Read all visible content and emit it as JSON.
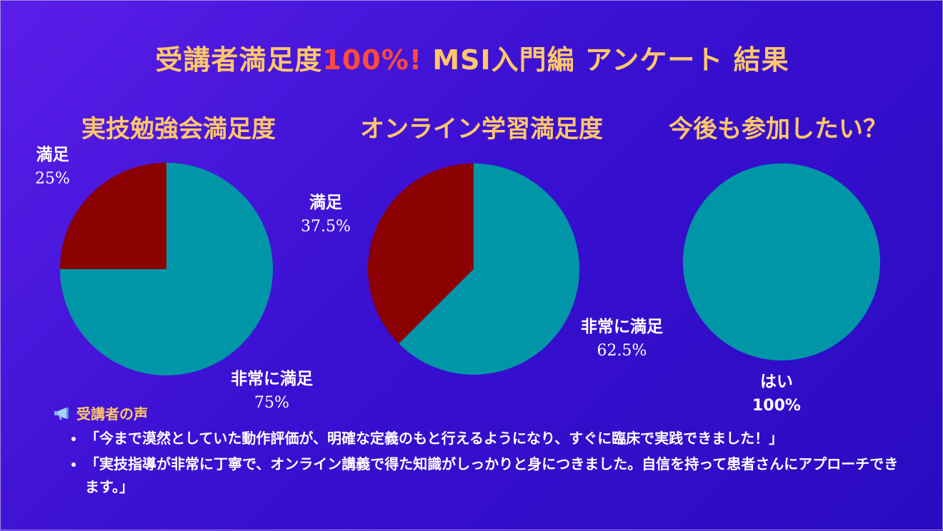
{
  "title": {
    "main": "受講者満足度",
    "accent": "100%!",
    "rest": " MSI入門編 アンケート 結果"
  },
  "colors": {
    "slice_very": "#0096a8",
    "slice_sat": "#8b0000",
    "title": "#ffc76a",
    "accent": "#ff4a3d"
  },
  "chart_data": [
    {
      "type": "pie",
      "title": "実技勉強会満足度",
      "slices": [
        {
          "label": "満足",
          "value": 25
        },
        {
          "label": "非常に満足",
          "value": 75
        }
      ]
    },
    {
      "type": "pie",
      "title": "オンライン学習満足度",
      "slices": [
        {
          "label": "満足",
          "value": 37.5
        },
        {
          "label": "非常に満足",
          "value": 62.5
        }
      ]
    },
    {
      "type": "pie",
      "title": "今後も参加したい？",
      "slices": [
        {
          "label": "はい",
          "value": 100
        }
      ]
    }
  ],
  "labels": {
    "c1_sat": {
      "name": "満足",
      "pct": "25%"
    },
    "c1_very": {
      "name": "非常に満足",
      "pct": "75%"
    },
    "c2_sat": {
      "name": "満足",
      "pct": "37.5%"
    },
    "c2_very": {
      "name": "非常に満足",
      "pct": "62.5%"
    },
    "c3_yes": {
      "name": "はい",
      "pct": "100%"
    }
  },
  "voices": {
    "icon": "megaphone-icon",
    "heading": "受講者の声",
    "items": [
      "「今まで漠然としていた動作評価が、明確な定義のもと行えるようになり、すぐに臨床で実践できました！」",
      "「実技指導が非常に丁寧で、オンライン講義で得た知識がしっかりと身につきました。自信を持って患者さんにアプローチできます。」"
    ]
  }
}
